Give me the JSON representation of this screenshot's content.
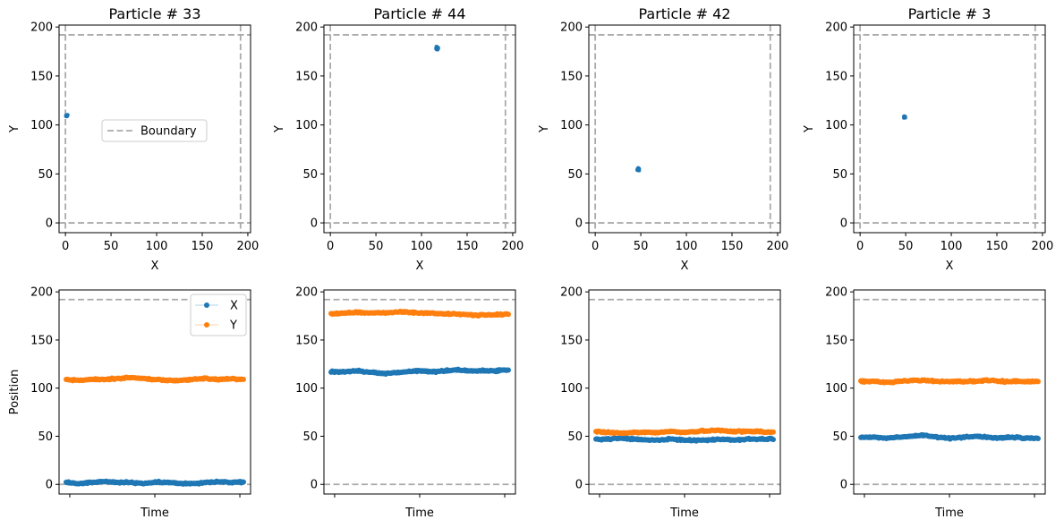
{
  "chart_data": [
    {
      "type": "scatter",
      "title": "Particle # 33",
      "xlabel": "X",
      "ylabel": "Y",
      "xlim": [
        -7,
        203
      ],
      "ylim": [
        -10,
        202
      ],
      "xticks": [
        0,
        50,
        100,
        150,
        200
      ],
      "yticks": [
        0,
        50,
        100,
        150,
        200
      ],
      "boundary": [
        0,
        192
      ],
      "legend": {
        "position": "center",
        "entries": [
          {
            "label": "Boundary",
            "style": "dashed",
            "color": "#aaaaaa"
          }
        ]
      },
      "series": [
        {
          "center": [
            1.5,
            109.5
          ],
          "spread": 1.2,
          "color": "#1f77b4"
        }
      ]
    },
    {
      "type": "scatter",
      "title": "Particle # 44",
      "xlabel": "X",
      "ylabel": "Y",
      "xlim": [
        -7,
        203
      ],
      "ylim": [
        -10,
        202
      ],
      "xticks": [
        0,
        50,
        100,
        150,
        200
      ],
      "yticks": [
        0,
        50,
        100,
        150,
        200
      ],
      "boundary": [
        0,
        192
      ],
      "series": [
        {
          "center": [
            117,
            178
          ],
          "spread": 1.5,
          "color": "#1f77b4"
        }
      ]
    },
    {
      "type": "scatter",
      "title": "Particle # 42",
      "xlabel": "X",
      "ylabel": "Y",
      "xlim": [
        -7,
        203
      ],
      "ylim": [
        -10,
        202
      ],
      "xticks": [
        0,
        50,
        100,
        150,
        200
      ],
      "yticks": [
        0,
        50,
        100,
        150,
        200
      ],
      "boundary": [
        0,
        192
      ],
      "series": [
        {
          "center": [
            47,
            55
          ],
          "spread": 1.3,
          "color": "#1f77b4"
        }
      ]
    },
    {
      "type": "scatter",
      "title": "Particle # 3",
      "xlabel": "X",
      "ylabel": "Y",
      "xlim": [
        -7,
        203
      ],
      "ylim": [
        -10,
        202
      ],
      "xticks": [
        0,
        50,
        100,
        150,
        200
      ],
      "yticks": [
        0,
        50,
        100,
        150,
        200
      ],
      "boundary": [
        0,
        192
      ],
      "series": [
        {
          "center": [
            49,
            108
          ],
          "spread": 1.0,
          "color": "#1f77b4"
        }
      ]
    },
    {
      "type": "line",
      "xlabel": "Time",
      "ylabel": "Position",
      "ylim": [
        -10,
        202
      ],
      "yticks": [
        0,
        50,
        100,
        150,
        200
      ],
      "boundary": [
        0,
        192
      ],
      "legend": {
        "position": "top-right",
        "entries": [
          {
            "label": "X",
            "color": "#1f77b4"
          },
          {
            "label": "Y",
            "color": "#ff7f0e"
          }
        ]
      },
      "series": [
        {
          "name": "X",
          "color": "#1f77b4",
          "values": [
            2,
            1,
            2,
            3,
            2,
            2,
            1,
            2,
            2,
            1,
            1,
            2,
            3,
            2,
            2
          ]
        },
        {
          "name": "Y",
          "color": "#ff7f0e",
          "values": [
            109,
            108,
            109,
            109,
            110,
            111,
            110,
            109,
            108,
            108,
            109,
            110,
            109,
            110,
            109
          ]
        }
      ]
    },
    {
      "type": "line",
      "xlabel": "Time",
      "ylabel": "",
      "ylim": [
        -10,
        202
      ],
      "yticks": [
        0,
        50,
        100,
        150,
        200
      ],
      "boundary": [
        0,
        192
      ],
      "series": [
        {
          "name": "X",
          "color": "#1f77b4",
          "values": [
            117,
            117,
            118,
            117,
            115,
            116,
            117,
            118,
            117,
            118,
            119,
            118,
            118,
            118,
            119
          ]
        },
        {
          "name": "Y",
          "color": "#ff7f0e",
          "values": [
            177,
            178,
            179,
            178,
            178,
            179,
            179,
            178,
            178,
            177,
            177,
            176,
            176,
            176,
            177
          ]
        }
      ]
    },
    {
      "type": "line",
      "xlabel": "Time",
      "ylabel": "",
      "ylim": [
        -10,
        202
      ],
      "yticks": [
        0,
        50,
        100,
        150,
        200
      ],
      "boundary": [
        0,
        192
      ],
      "series": [
        {
          "name": "X",
          "color": "#1f77b4",
          "values": [
            47,
            47,
            48,
            47,
            46,
            46,
            47,
            46,
            46,
            46,
            47,
            46,
            47,
            47,
            47
          ]
        },
        {
          "name": "Y",
          "color": "#ff7f0e",
          "values": [
            55,
            54,
            53,
            54,
            54,
            54,
            55,
            54,
            55,
            56,
            56,
            55,
            55,
            55,
            54
          ]
        }
      ]
    },
    {
      "type": "line",
      "xlabel": "Time",
      "ylabel": "",
      "ylim": [
        -10,
        202
      ],
      "yticks": [
        0,
        50,
        100,
        150,
        200
      ],
      "boundary": [
        0,
        192
      ],
      "series": [
        {
          "name": "X",
          "color": "#1f77b4",
          "values": [
            49,
            49,
            48,
            49,
            50,
            51,
            49,
            48,
            49,
            50,
            49,
            48,
            49,
            48,
            48
          ]
        },
        {
          "name": "Y",
          "color": "#ff7f0e",
          "values": [
            107,
            107,
            106,
            107,
            108,
            108,
            107,
            107,
            107,
            107,
            108,
            107,
            107,
            107,
            107
          ]
        }
      ]
    }
  ]
}
